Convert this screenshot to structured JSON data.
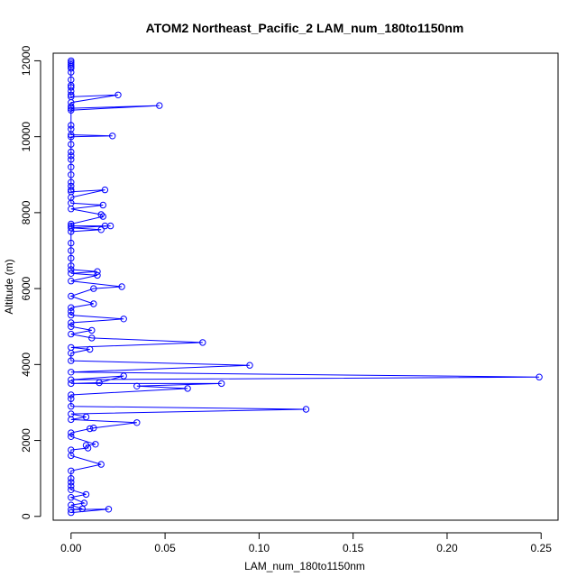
{
  "chart_data": {
    "type": "scatter",
    "title": "ATOM2 Northeast_Pacific_2 LAM_num_180to1150nm",
    "xlabel": "LAM_num_180to1150nm",
    "ylabel": "Altitude (m)",
    "xlim": [
      -0.0095,
      0.259
    ],
    "ylim": [
      -100,
      12200
    ],
    "xticks": [
      0.0,
      0.05,
      0.1,
      0.15,
      0.2,
      0.25
    ],
    "xtick_labels": [
      "0.00",
      "0.05",
      "0.10",
      "0.15",
      "0.20",
      "0.25"
    ],
    "yticks": [
      0,
      2000,
      4000,
      6000,
      8000,
      10000,
      12000
    ],
    "ytick_labels": [
      "0",
      "2000",
      "4000",
      "6000",
      "8000",
      "10000",
      "12000"
    ],
    "grid": false,
    "legend": "none",
    "colors": {
      "series": "#0000ff"
    },
    "series": [
      {
        "marker": "open-circle",
        "line": true,
        "x": [
          0,
          0,
          0,
          0,
          0,
          0,
          0,
          0,
          0,
          0,
          0,
          0,
          0.025,
          0,
          0,
          0,
          0.047,
          0,
          0,
          0,
          0,
          0.022,
          0,
          0,
          0,
          0,
          0,
          0,
          0,
          0,
          0,
          0,
          0,
          0.018,
          0,
          0,
          0.017,
          0,
          0.016,
          0.017,
          0,
          0,
          0.018,
          0.021,
          0,
          0.016,
          0,
          0,
          0,
          0,
          0,
          0,
          0.014,
          0,
          0.014,
          0,
          0.027,
          0.012,
          0,
          0.012,
          0,
          0,
          0,
          0.028,
          0,
          0,
          0.011,
          0,
          0.011,
          0.07,
          0,
          0.01,
          0,
          0,
          0.095,
          0,
          0.249,
          0,
          0.028,
          0.015,
          0,
          0.08,
          0.035,
          0.062,
          0,
          0,
          0,
          0.125,
          0,
          0.008,
          0,
          0.035,
          0.012,
          0.01,
          0,
          0,
          0.013,
          0.008,
          0.009,
          0,
          0,
          0.016,
          0,
          0,
          0,
          0,
          0,
          0.008,
          0,
          0.007,
          0,
          0.006,
          0,
          0.02,
          0
        ],
        "y": [
          12000,
          11950,
          11900,
          11850,
          11800,
          11700,
          11500,
          11350,
          11300,
          11200,
          11100,
          11050,
          11100,
          10900,
          10800,
          10750,
          10820,
          10700,
          10300,
          10200,
          10050,
          10020,
          10000,
          9800,
          9600,
          9500,
          9400,
          9200,
          9000,
          8800,
          8700,
          8600,
          8550,
          8600,
          8400,
          8250,
          8200,
          8100,
          7950,
          7900,
          7700,
          7650,
          7650,
          7650,
          7600,
          7550,
          7500,
          7200,
          7000,
          6800,
          6600,
          6500,
          6450,
          6400,
          6350,
          6200,
          6050,
          6000,
          5800,
          5600,
          5500,
          5400,
          5300,
          5200,
          5100,
          5000,
          4900,
          4800,
          4700,
          4580,
          4450,
          4400,
          4300,
          4100,
          3980,
          3800,
          3670,
          3600,
          3700,
          3520,
          3500,
          3500,
          3430,
          3370,
          3200,
          3100,
          2900,
          2820,
          2700,
          2620,
          2550,
          2470,
          2330,
          2310,
          2200,
          2100,
          1900,
          1870,
          1800,
          1750,
          1600,
          1370,
          1200,
          1000,
          900,
          800,
          700,
          580,
          500,
          350,
          300,
          200,
          180,
          190,
          100
        ]
      }
    ]
  }
}
